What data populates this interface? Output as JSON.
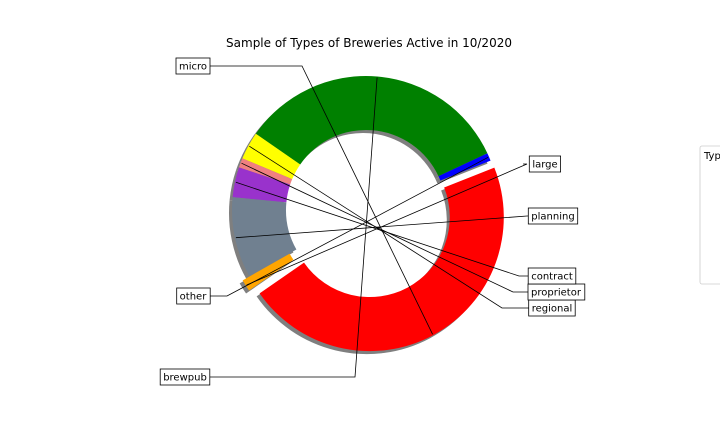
{
  "chart_data": {
    "type": "pie",
    "donut": true,
    "title": "Sample of Types of Breweries Active in 10/2020",
    "shadow": true,
    "start_angle": -145.3,
    "direction": "counterclockwise",
    "exploded": [
      "micro",
      "large"
    ],
    "slices": [
      {
        "label": "micro",
        "value": 48.6,
        "color": "#ff0000"
      },
      {
        "label": "other",
        "value": 1.0,
        "color": "#0000ff"
      },
      {
        "label": "brewpub",
        "value": 35.0,
        "color": "#008000"
      },
      {
        "label": "regional",
        "value": 3.5,
        "color": "#ffff00"
      },
      {
        "label": "proprietor",
        "value": 1.2,
        "color": "#f08080"
      },
      {
        "label": "contract",
        "value": 3.8,
        "color": "#9932cc"
      },
      {
        "label": "planning",
        "value": 10.2,
        "color": "#708090"
      },
      {
        "label": "large",
        "value": 1.5,
        "color": "#ffa500"
      }
    ],
    "legend": {
      "title": "Typ",
      "placement": "right",
      "clipped": true
    }
  }
}
